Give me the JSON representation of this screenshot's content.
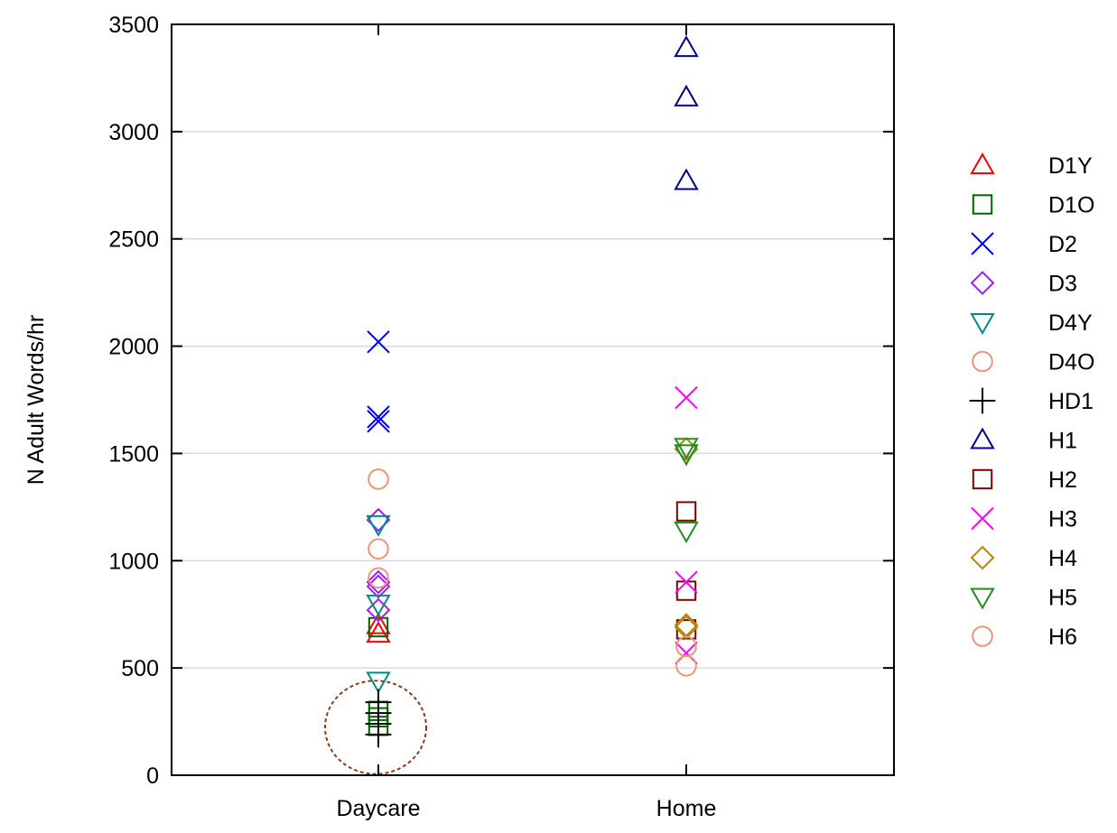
{
  "chart_data": {
    "type": "scatter",
    "title": "",
    "xlabel": "",
    "ylabel": "N Adult Words/hr",
    "categories": [
      "Daycare",
      "Home"
    ],
    "ylim": [
      0,
      3500
    ],
    "yticks": [
      0,
      500,
      1000,
      1500,
      2000,
      2500,
      3000,
      3500
    ],
    "grid": "horizontal",
    "legend_position": "right",
    "series": [
      {
        "name": "D1Y",
        "color": "#ff0000",
        "marker": "triangle-up",
        "points": [
          {
            "x": "Daycare",
            "y": 660
          },
          {
            "x": "Daycare",
            "y": 700
          }
        ]
      },
      {
        "name": "D1O",
        "color": "#006400",
        "marker": "square",
        "points": [
          {
            "x": "Daycare",
            "y": 230
          },
          {
            "x": "Daycare",
            "y": 270
          },
          {
            "x": "Daycare",
            "y": 300
          },
          {
            "x": "Daycare",
            "y": 690
          }
        ]
      },
      {
        "name": "D2",
        "color": "#0000ff",
        "marker": "x",
        "points": [
          {
            "x": "Daycare",
            "y": 2020
          },
          {
            "x": "Daycare",
            "y": 1670
          },
          {
            "x": "Daycare",
            "y": 1650
          }
        ]
      },
      {
        "name": "D3",
        "color": "#a020f0",
        "marker": "diamond",
        "points": [
          {
            "x": "Daycare",
            "y": 1190
          },
          {
            "x": "Daycare",
            "y": 900
          },
          {
            "x": "Daycare",
            "y": 880
          },
          {
            "x": "Daycare",
            "y": 770
          }
        ]
      },
      {
        "name": "D4Y",
        "color": "#008b8b",
        "marker": "triangle-down",
        "points": [
          {
            "x": "Daycare",
            "y": 1170
          },
          {
            "x": "Daycare",
            "y": 800
          },
          {
            "x": "Daycare",
            "y": 440
          }
        ]
      },
      {
        "name": "D4O",
        "color": "#e9967a",
        "marker": "circle",
        "points": [
          {
            "x": "Daycare",
            "y": 1380
          },
          {
            "x": "Daycare",
            "y": 1055
          },
          {
            "x": "Daycare",
            "y": 920
          }
        ]
      },
      {
        "name": "HD1",
        "color": "#000000",
        "marker": "plus",
        "points": [
          {
            "x": "Daycare",
            "y": 190
          },
          {
            "x": "Daycare",
            "y": 240
          },
          {
            "x": "Daycare",
            "y": 290
          },
          {
            "x": "Daycare",
            "y": 340
          }
        ]
      },
      {
        "name": "H1",
        "color": "#00008b",
        "marker": "triangle-up",
        "points": [
          {
            "x": "Home",
            "y": 3390
          },
          {
            "x": "Home",
            "y": 3160
          },
          {
            "x": "Home",
            "y": 2770
          }
        ]
      },
      {
        "name": "H2",
        "color": "#800000",
        "marker": "square",
        "points": [
          {
            "x": "Home",
            "y": 1230
          },
          {
            "x": "Home",
            "y": 860
          },
          {
            "x": "Home",
            "y": 680
          }
        ]
      },
      {
        "name": "H3",
        "color": "#ff00ff",
        "marker": "x",
        "points": [
          {
            "x": "Home",
            "y": 1760
          },
          {
            "x": "Home",
            "y": 900
          },
          {
            "x": "Home",
            "y": 570
          }
        ]
      },
      {
        "name": "H4",
        "color": "#b8860b",
        "marker": "diamond",
        "points": [
          {
            "x": "Home",
            "y": 1520
          },
          {
            "x": "Home",
            "y": 700
          },
          {
            "x": "Home",
            "y": 690
          }
        ]
      },
      {
        "name": "H5",
        "color": "#228b22",
        "marker": "triangle-down",
        "points": [
          {
            "x": "Home",
            "y": 1530
          },
          {
            "x": "Home",
            "y": 1500
          },
          {
            "x": "Home",
            "y": 1140
          }
        ]
      },
      {
        "name": "H6",
        "color": "#e9967a",
        "marker": "circle",
        "points": [
          {
            "x": "Home",
            "y": 600
          },
          {
            "x": "Home",
            "y": 510
          }
        ]
      }
    ],
    "annotations": [
      {
        "type": "ellipse",
        "style": "dashed",
        "color": "#8b3a1a",
        "x": "Daycare",
        "y_center": 240,
        "y_extent": [
          0,
          500
        ]
      }
    ]
  }
}
